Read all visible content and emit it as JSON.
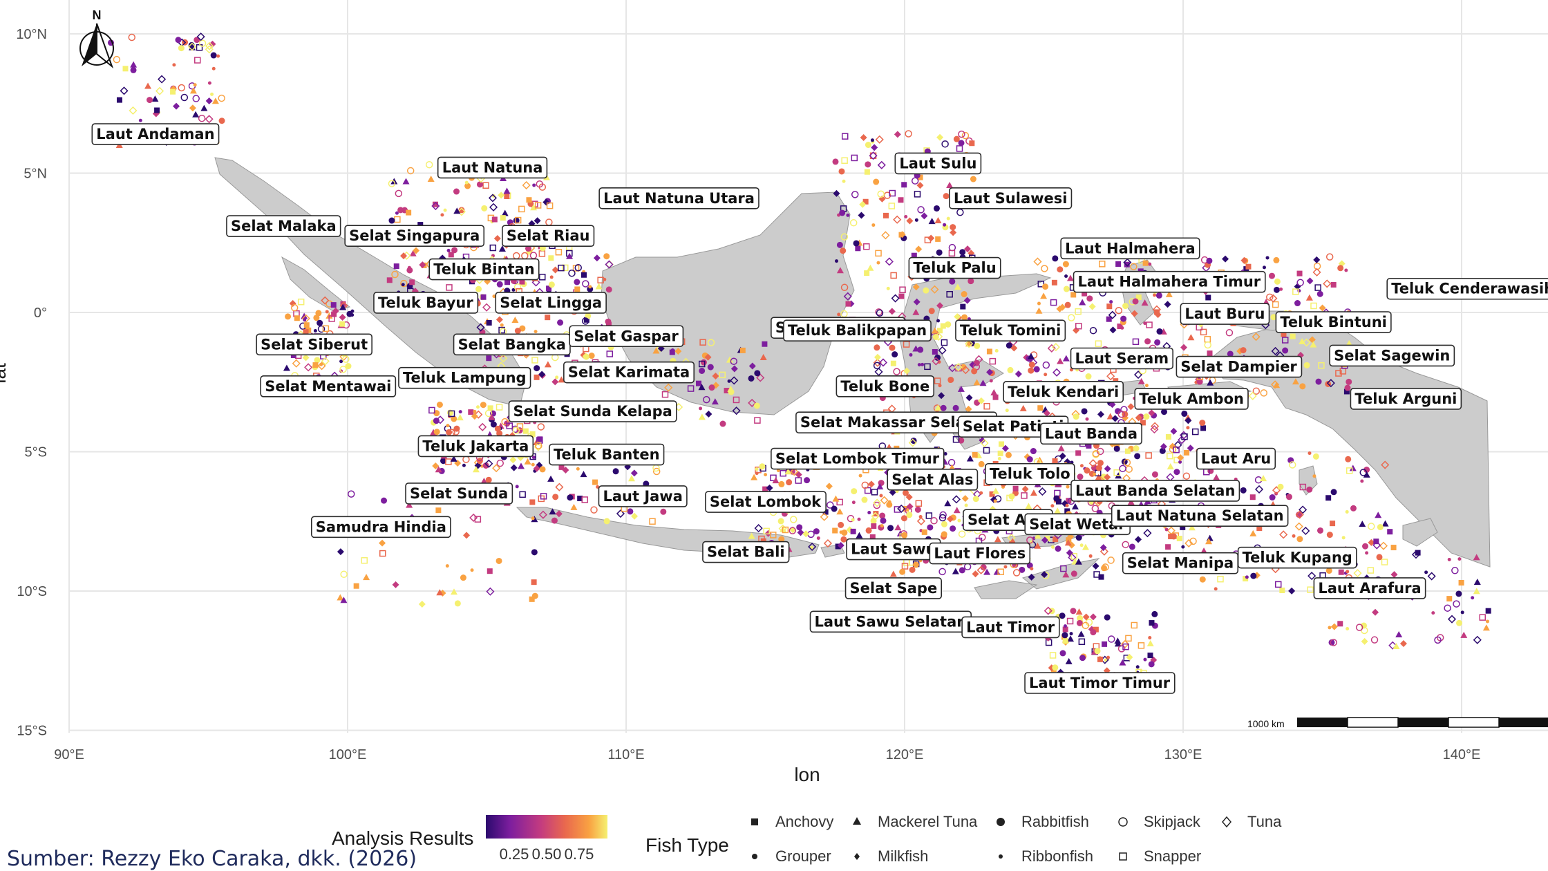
{
  "map": {
    "x_axis": {
      "title": "lon",
      "ticks": [
        {
          "value": 90,
          "label": "90°E"
        },
        {
          "value": 100,
          "label": "100°E"
        },
        {
          "value": 110,
          "label": "110°E"
        },
        {
          "value": 120,
          "label": "120°E"
        },
        {
          "value": 130,
          "label": "130°E"
        },
        {
          "value": 140,
          "label": "140°E"
        }
      ]
    },
    "y_axis": {
      "title": "lat",
      "ticks": [
        {
          "value": 10,
          "label": "10°N"
        },
        {
          "value": 5,
          "label": "5°N"
        },
        {
          "value": 0,
          "label": "0°"
        },
        {
          "value": -5,
          "label": "5°S"
        },
        {
          "value": -10,
          "label": "10°S"
        },
        {
          "value": -15,
          "label": "15°S"
        }
      ]
    },
    "grid": true,
    "north_arrow": {
      "label": "N",
      "icon": "north-arrow-icon"
    },
    "scale_bar": {
      "label": "1000 km"
    },
    "land_color": "#cccccc",
    "water_labels": [
      {
        "name": "Laut Andaman",
        "lon": 93.1,
        "lat": 6.4
      },
      {
        "name": "Laut Natuna",
        "lon": 105.2,
        "lat": 5.2
      },
      {
        "name": "Laut Natuna Utara",
        "lon": 111.9,
        "lat": 4.1
      },
      {
        "name": "Selat Malaka",
        "lon": 97.7,
        "lat": 3.1
      },
      {
        "name": "Selat Singapura",
        "lon": 102.4,
        "lat": 2.75
      },
      {
        "name": "Selat Riau",
        "lon": 107.2,
        "lat": 2.75
      },
      {
        "name": "Teluk Bintan",
        "lon": 104.9,
        "lat": 1.55
      },
      {
        "name": "Teluk Bayur",
        "lon": 102.8,
        "lat": 0.35
      },
      {
        "name": "Selat Lingga",
        "lon": 107.3,
        "lat": 0.35
      },
      {
        "name": "Selat Siberut",
        "lon": 98.8,
        "lat": -1.15
      },
      {
        "name": "Selat Bangka",
        "lon": 105.9,
        "lat": -1.15
      },
      {
        "name": "Selat Gaspar",
        "lon": 110.0,
        "lat": -0.85
      },
      {
        "name": "Selat Mentawai",
        "lon": 99.3,
        "lat": -2.65
      },
      {
        "name": "Teluk Lampung",
        "lon": 104.2,
        "lat": -2.35
      },
      {
        "name": "Selat Karimata",
        "lon": 110.1,
        "lat": -2.15
      },
      {
        "name": "Selat Sunda Kelapa",
        "lon": 108.8,
        "lat": -3.55
      },
      {
        "name": "Teluk Jakarta",
        "lon": 104.6,
        "lat": -4.8
      },
      {
        "name": "Teluk Banten",
        "lon": 109.3,
        "lat": -5.1
      },
      {
        "name": "Selat Sunda",
        "lon": 104.0,
        "lat": -6.5
      },
      {
        "name": "Laut Jawa",
        "lon": 110.6,
        "lat": -6.6
      },
      {
        "name": "Samudra Hindia",
        "lon": 101.2,
        "lat": -7.7
      },
      {
        "name": "Selat Lombok",
        "lon": 115.0,
        "lat": -6.8
      },
      {
        "name": "Selat Bali",
        "lon": 114.3,
        "lat": -8.6
      },
      {
        "name": "Selat Lombok Timur",
        "lon": 118.3,
        "lat": -5.25
      },
      {
        "name": "Selat Makassar",
        "lon": 117.6,
        "lat": -0.55
      },
      {
        "name": "Selat Makassar Selatan",
        "lon": 119.7,
        "lat": -3.95
      },
      {
        "name": "Laut Sulu",
        "lon": 121.2,
        "lat": 5.35
      },
      {
        "name": "Laut Sulawesi",
        "lon": 123.8,
        "lat": 4.1
      },
      {
        "name": "Teluk Palu",
        "lon": 121.8,
        "lat": 1.6
      },
      {
        "name": "Teluk Balikpapan",
        "lon": 118.3,
        "lat": -0.65
      },
      {
        "name": "Teluk Tomini",
        "lon": 123.8,
        "lat": -0.65
      },
      {
        "name": "Teluk Bone",
        "lon": 119.3,
        "lat": -2.65
      },
      {
        "name": "Selat Patinti",
        "lon": 123.9,
        "lat": -4.1
      },
      {
        "name": "Selat Alas",
        "lon": 121.0,
        "lat": -6.0
      },
      {
        "name": "Selat Alor",
        "lon": 123.7,
        "lat": -7.45
      },
      {
        "name": "Laut Sawu",
        "lon": 119.6,
        "lat": -8.5
      },
      {
        "name": "Laut Flores",
        "lon": 122.7,
        "lat": -8.65
      },
      {
        "name": "Selat Sape",
        "lon": 119.6,
        "lat": -9.9
      },
      {
        "name": "Laut Sawu Selatan",
        "lon": 119.5,
        "lat": -11.1
      },
      {
        "name": "Laut Timor",
        "lon": 123.8,
        "lat": -11.3
      },
      {
        "name": "Laut Timor Timur",
        "lon": 127.0,
        "lat": -13.3
      },
      {
        "name": "Laut Halmahera",
        "lon": 128.1,
        "lat": 2.3
      },
      {
        "name": "Laut Halmahera Timur",
        "lon": 129.5,
        "lat": 1.1
      },
      {
        "name": "Laut Buru",
        "lon": 131.5,
        "lat": -0.05
      },
      {
        "name": "Teluk Bintuni",
        "lon": 135.4,
        "lat": -0.35
      },
      {
        "name": "Teluk Cenderawasih",
        "lon": 140.4,
        "lat": 0.85
      },
      {
        "name": "Laut Seram",
        "lon": 127.8,
        "lat": -1.65
      },
      {
        "name": "Selat Dampier",
        "lon": 132.0,
        "lat": -1.95
      },
      {
        "name": "Selat Sagewin",
        "lon": 137.5,
        "lat": -1.55
      },
      {
        "name": "Teluk Kendari",
        "lon": 125.7,
        "lat": -2.85
      },
      {
        "name": "Teluk Ambon",
        "lon": 130.3,
        "lat": -3.1
      },
      {
        "name": "Teluk Arguni",
        "lon": 138.0,
        "lat": -3.1
      },
      {
        "name": "Laut Banda",
        "lon": 126.7,
        "lat": -4.35
      },
      {
        "name": "Laut Aru",
        "lon": 131.9,
        "lat": -5.25
      },
      {
        "name": "Teluk Tolo",
        "lon": 124.5,
        "lat": -5.8
      },
      {
        "name": "Laut Banda Selatan",
        "lon": 129.0,
        "lat": -6.4
      },
      {
        "name": "Selat Wetar",
        "lon": 126.2,
        "lat": -7.6
      },
      {
        "name": "Laut Natuna Selatan",
        "lon": 130.6,
        "lat": -7.3
      },
      {
        "name": "Selat Manipa",
        "lon": 129.9,
        "lat": -9.0
      },
      {
        "name": "Teluk Kupang",
        "lon": 134.1,
        "lat": -8.8
      },
      {
        "name": "Laut Arafura",
        "lon": 136.7,
        "lat": -9.9
      }
    ]
  },
  "legend": {
    "color_title": "Analysis Results",
    "color_ticks": [
      "0.25",
      "0.50",
      "0.75"
    ],
    "colors": [
      "#2b0a6e",
      "#7d1e9e",
      "#c33b80",
      "#e9684e",
      "#f9a242",
      "#f5f070"
    ],
    "shape_title": "Fish Type",
    "items": [
      {
        "label": "Anchovy",
        "shape": "square-filled"
      },
      {
        "label": "Grouper",
        "shape": "circle-filled-small"
      },
      {
        "label": "Mackerel Tuna",
        "shape": "triangle-filled"
      },
      {
        "label": "Milkfish",
        "shape": "diamond-filled"
      },
      {
        "label": "Rabbitfish",
        "shape": "circle-filled"
      },
      {
        "label": "Ribbonfish",
        "shape": "dot-small"
      },
      {
        "label": "Skipjack",
        "shape": "circle-open"
      },
      {
        "label": "Snapper",
        "shape": "square-open"
      },
      {
        "label": "Tuna",
        "shape": "diamond-open"
      }
    ]
  },
  "source": "Sumber: Rezzy Eko Caraka, dkk. (2026)"
}
